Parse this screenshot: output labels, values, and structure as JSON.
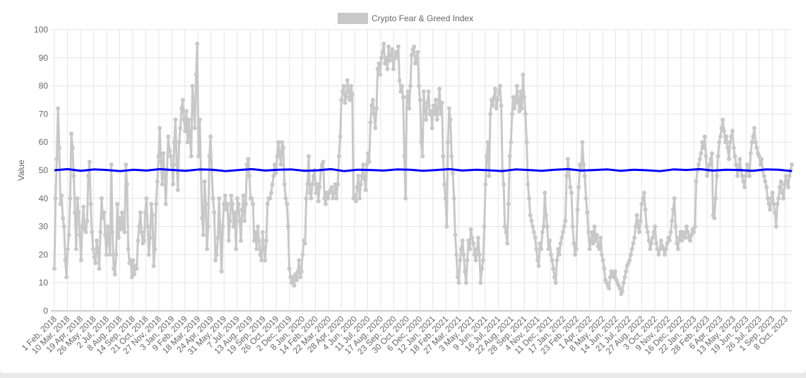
{
  "chart_data": {
    "type": "line",
    "title": "",
    "xlabel": "",
    "ylabel": "Value",
    "ylim": [
      0,
      100
    ],
    "y_ticks": [
      0,
      10,
      20,
      30,
      40,
      50,
      60,
      70,
      80,
      90,
      100
    ],
    "grid": true,
    "legend_position": "top-center",
    "x_tick_labels": [
      "1 Feb, 2018",
      "10 Mar, 2018",
      "19 Apr, 2018",
      "26 May, 2018",
      "2 Jul, 2018",
      "8 Aug, 2018",
      "14 Sep, 2018",
      "21 Oct, 2018",
      "27 Nov, 2018",
      "3 Jan, 2019",
      "9 Feb, 2019",
      "18 Mar, 2019",
      "24 Apr, 2019",
      "31 May, 2019",
      "7 Jul, 2019",
      "13 Aug, 2019",
      "19 Sep, 2019",
      "26 Oct, 2019",
      "2 Dec, 2019",
      "8 Jan, 2020",
      "14 Feb, 2020",
      "22 Mar, 2020",
      "28 Apr, 2020",
      "4 Jun, 2020",
      "11 Jul, 2020",
      "17 Aug, 2020",
      "23 Sep, 2020",
      "30 Oct, 2020",
      "6 Dec, 2020",
      "12 Jan, 2021",
      "18 Feb, 2021",
      "27 Mar, 2021",
      "3 May, 2021",
      "9 Jun, 2021",
      "16 Jul, 2021",
      "22 Aug, 2021",
      "28 Sep, 2021",
      "4 Nov, 2021",
      "11 Dec, 2021",
      "17 Jan, 2022",
      "23 Feb, 2022",
      "1 Apr, 2022",
      "8 May, 2022",
      "14 Jun, 2022",
      "21 Jul, 2022",
      "27 Aug, 2022",
      "3 Oct, 2022",
      "9 Nov, 2022",
      "16 Dec, 2022",
      "22 Jan, 2023",
      "28 Feb, 2023",
      "6 Apr, 2023",
      "13 May, 2023",
      "19 Jun, 2023",
      "26 Jul, 2023",
      "1 Sep, 2023",
      "8 Oct, 2023"
    ],
    "series": [
      {
        "name": "Crypto Fear & Greed Index",
        "color": "#c8c8c8",
        "values": [
          15,
          40,
          54,
          72,
          58,
          38,
          41,
          33,
          30,
          18,
          12,
          22,
          27,
          40,
          63,
          58,
          48,
          35,
          22,
          40,
          35,
          27,
          18,
          30,
          37,
          29,
          28,
          32,
          48,
          53,
          38,
          28,
          22,
          19,
          17,
          25,
          22,
          15,
          28,
          40,
          33,
          35,
          27,
          20,
          30,
          25,
          20,
          52,
          28,
          15,
          13,
          20,
          38,
          26,
          33,
          29,
          35,
          30,
          28,
          52,
          45,
          22,
          17,
          18,
          12,
          18,
          13,
          16,
          15,
          25,
          30,
          35,
          28,
          24,
          25,
          35,
          40,
          30,
          20,
          26,
          38,
          34,
          16,
          22,
          38,
          46,
          55,
          65,
          53,
          45,
          56,
          48,
          38,
          50,
          62,
          57,
          55,
          52,
          45,
          60,
          68,
          52,
          43,
          60,
          65,
          72,
          75,
          68,
          64,
          71,
          60,
          68,
          62,
          55,
          80,
          73,
          65,
          84,
          95,
          55,
          68,
          50,
          33,
          27,
          46,
          38,
          22,
          30,
          55,
          62,
          50,
          40,
          35,
          18,
          20,
          26,
          40,
          28,
          14,
          30,
          38,
          41,
          36,
          38,
          25,
          32,
          41,
          38,
          30,
          35,
          22,
          40,
          38,
          32,
          25,
          36,
          41,
          32,
          38,
          52,
          54,
          48,
          40,
          40,
          38,
          25,
          28,
          22,
          30,
          25,
          20,
          18,
          28,
          22,
          18,
          25,
          38,
          40,
          40,
          42,
          45,
          48,
          52,
          49,
          55,
          60,
          56,
          52,
          60,
          58,
          45,
          40,
          38,
          30,
          15,
          12,
          10,
          12,
          9,
          13,
          11,
          14,
          18,
          12,
          14,
          20,
          25,
          24,
          40,
          45,
          55,
          42,
          40,
          45,
          48,
          50,
          42,
          45,
          39,
          44,
          50,
          52,
          53,
          40,
          38,
          42,
          40,
          42,
          43,
          44,
          40,
          42,
          45,
          40,
          45,
          55,
          62,
          75,
          78,
          80,
          74,
          76,
          82,
          78,
          75,
          80,
          77,
          40,
          41,
          39,
          44,
          48,
          40,
          45,
          48,
          52,
          47,
          43,
          52,
          56,
          53,
          67,
          73,
          75,
          70,
          65,
          72,
          86,
          88,
          84,
          90,
          92,
          95,
          88,
          90,
          86,
          94,
          89,
          91,
          93,
          86,
          90,
          92,
          90,
          94,
          82,
          78,
          80,
          76,
          55,
          40,
          76,
          78,
          72,
          80,
          91,
          93,
          94,
          88,
          90,
          92,
          80,
          75,
          60,
          55,
          78,
          72,
          68,
          74,
          78,
          70,
          71,
          65,
          73,
          70,
          75,
          68,
          72,
          79,
          70,
          74,
          55,
          45,
          40,
          30,
          60,
          72,
          68,
          55,
          49,
          40,
          27,
          20,
          12,
          10,
          18,
          22,
          25,
          20,
          14,
          10,
          18,
          25,
          22,
          29,
          26,
          24,
          20,
          18,
          22,
          26,
          20,
          10,
          15,
          18,
          30,
          45,
          55,
          60,
          48,
          70,
          75,
          73,
          76,
          79,
          72,
          75,
          78,
          80,
          73,
          50,
          45,
          30,
          28,
          24,
          38,
          55,
          60,
          70,
          76,
          72,
          74,
          80,
          75,
          71,
          78,
          72,
          84,
          76,
          70,
          60,
          45,
          40,
          34,
          32,
          30,
          28,
          26,
          22,
          18,
          16,
          24,
          22,
          28,
          30,
          42,
          34,
          30,
          22,
          25,
          20,
          18,
          15,
          12,
          10,
          18,
          22,
          20,
          24,
          26,
          28,
          30,
          32,
          48,
          54,
          50,
          44,
          42,
          30,
          24,
          20,
          22,
          36,
          44,
          52,
          50,
          60,
          52,
          48,
          40,
          35,
          28,
          22,
          25,
          28,
          24,
          30,
          25,
          27,
          23,
          22,
          26,
          20,
          18,
          15,
          11,
          10,
          9,
          8,
          12,
          14,
          13,
          12,
          14,
          11,
          10,
          9,
          8,
          6,
          7,
          10,
          12,
          14,
          16,
          17,
          18,
          20,
          22,
          24,
          26,
          30,
          34,
          30,
          28,
          32,
          38,
          40,
          42,
          36,
          30,
          28,
          25,
          22,
          24,
          26,
          28,
          30,
          24,
          22,
          20,
          22,
          25,
          23,
          22,
          20,
          22,
          24,
          26,
          25,
          28,
          32,
          36,
          40,
          30,
          24,
          22,
          26,
          28,
          25,
          28,
          27,
          26,
          30,
          28,
          26,
          25,
          27,
          29,
          28,
          30,
          46,
          50,
          52,
          54,
          56,
          60,
          58,
          62,
          55,
          48,
          50,
          52,
          54,
          56,
          34,
          33,
          40,
          48,
          55,
          60,
          62,
          65,
          68,
          64,
          60,
          62,
          58,
          54,
          60,
          62,
          64,
          58,
          55,
          52,
          48,
          50,
          54,
          50,
          48,
          46,
          44,
          48,
          52,
          50,
          48,
          56,
          60,
          62,
          65,
          60,
          58,
          56,
          55,
          52,
          54,
          50,
          48,
          46,
          44,
          40,
          38,
          36,
          40,
          42,
          38,
          35,
          30,
          38,
          40,
          44,
          46,
          42,
          40,
          45,
          48,
          46,
          44,
          48,
          50,
          52
        ]
      },
      {
        "name": "",
        "color": "#0000ff",
        "values": [
          50,
          50.4,
          49.8,
          50.3,
          50.1,
          49.7,
          50.2,
          49.9,
          50.4,
          50.1,
          49.8,
          50.3,
          50.2,
          49.7,
          50.1,
          50.4,
          49.9,
          50.2,
          50.3,
          49.8,
          50,
          50.4,
          49.7,
          50.2,
          50.1,
          49.9,
          50.3,
          50.2,
          49.8,
          50.1,
          50.4,
          49.9,
          50.2,
          50,
          49.7,
          50.3,
          50.1,
          49.8,
          50.2,
          50.4,
          49.9,
          50.1,
          50.3,
          49.8,
          50.2,
          50,
          49.7,
          50.3,
          50.1,
          50.4,
          49.9,
          50.2,
          50.1,
          49.8,
          50.3,
          50.2,
          49.7
        ]
      }
    ]
  }
}
